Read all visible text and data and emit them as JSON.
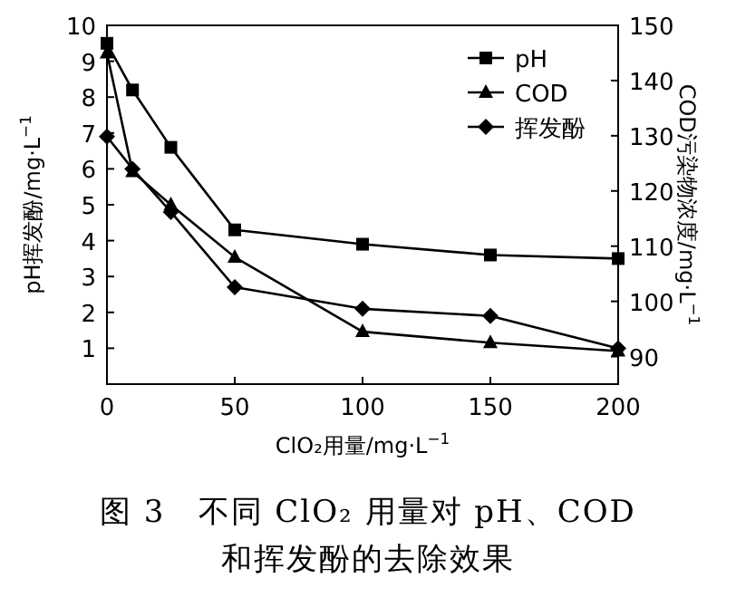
{
  "chart_data": {
    "type": "line",
    "title": "图 3　不同 ClO₂ 用量对 pH、COD 和挥发酚的去除效果",
    "xlabel": "ClO₂用量/mg·L$^{−1}$",
    "ylabel": "pH挥发酚/mg·L$^{−1}$",
    "y2label": "COD污染物浓度/mg·L$^{−1}$",
    "x": [
      0,
      10,
      25,
      50,
      100,
      150,
      200
    ],
    "series": [
      {
        "name": "pH",
        "color": "#000000",
        "marker": "square",
        "values": [
          9.5,
          8.2,
          6.6,
          4.3,
          3.9,
          3.6,
          3.5
        ]
      },
      {
        "name": "COD",
        "color": "#000000",
        "marker": "triangle",
        "axis": "y2",
        "values": [
          145,
          123.5,
          117.5,
          108,
          94.5,
          92.5,
          91
        ]
      },
      {
        "name": "挥发酚",
        "color": "#000000",
        "marker": "diamond",
        "values": [
          6.9,
          6.0,
          4.8,
          2.7,
          2.1,
          1.9,
          1.0
        ]
      }
    ],
    "xlim": [
      0,
      200
    ],
    "xticks": [
      0,
      50,
      100,
      150,
      200
    ],
    "ylim": [
      0,
      10
    ],
    "yticks": [
      1,
      2,
      3,
      4,
      5,
      6,
      7,
      8,
      9,
      10
    ],
    "y2lim": [
      85,
      150
    ],
    "y2ticks": [
      90,
      100,
      110,
      120,
      130,
      140,
      150
    ],
    "legend": "top right",
    "grid": false,
    "line_style": "solid"
  }
}
